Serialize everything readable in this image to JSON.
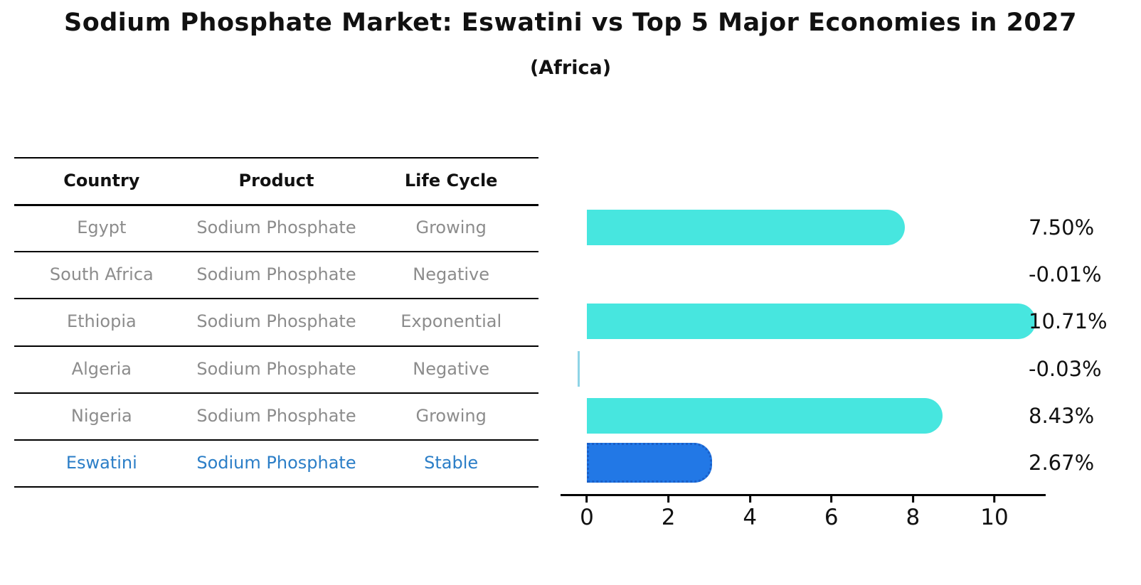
{
  "title": "Sodium Phosphate Market: Eswatini vs Top 5 Major Economies in 2027",
  "subtitle": "(Africa)",
  "table": {
    "headers": [
      "Country",
      "Product",
      "Life Cycle"
    ],
    "rows": [
      {
        "country": "Egypt",
        "product": "Sodium Phosphate",
        "life_cycle": "Growing"
      },
      {
        "country": "South Africa",
        "product": "Sodium Phosphate",
        "life_cycle": "Negative"
      },
      {
        "country": "Ethiopia",
        "product": "Sodium Phosphate",
        "life_cycle": "Exponential"
      },
      {
        "country": "Algeria",
        "product": "Sodium Phosphate",
        "life_cycle": "Negative"
      },
      {
        "country": "Nigeria",
        "product": "Sodium Phosphate",
        "life_cycle": "Growing"
      },
      {
        "country": "Eswatini",
        "product": "Sodium Phosphate",
        "life_cycle": "Stable"
      }
    ]
  },
  "chart_data": {
    "type": "bar",
    "orientation": "horizontal",
    "title": "Sodium Phosphate Market: Eswatini vs Top 5 Major Economies in 2027",
    "subtitle": "(Africa)",
    "categories": [
      "Egypt",
      "South Africa",
      "Ethiopia",
      "Algeria",
      "Nigeria",
      "Eswatini"
    ],
    "values": [
      7.5,
      -0.01,
      10.71,
      -0.03,
      8.43,
      2.67
    ],
    "value_labels": [
      "7.50%",
      "-0.01%",
      "10.71%",
      "-0.03%",
      "8.43%",
      "2.67%"
    ],
    "xlabel": "",
    "ylabel": "",
    "xlim": [
      -0.65,
      11.3
    ],
    "xticks": [
      0,
      2,
      4,
      6,
      8,
      10
    ],
    "xtick_labels": [
      "0",
      "2",
      "4",
      "6",
      "8",
      "10"
    ],
    "grid": false,
    "legend": false,
    "highlight_index": 5,
    "colors": {
      "bar_default": "#47e6df",
      "bar_highlight": "#2278e6",
      "bar_highlight_border": "#1a5fc8",
      "highlight_text": "#2b7ec7",
      "row_text": "#8c8c8c",
      "axis": "#000000"
    }
  }
}
